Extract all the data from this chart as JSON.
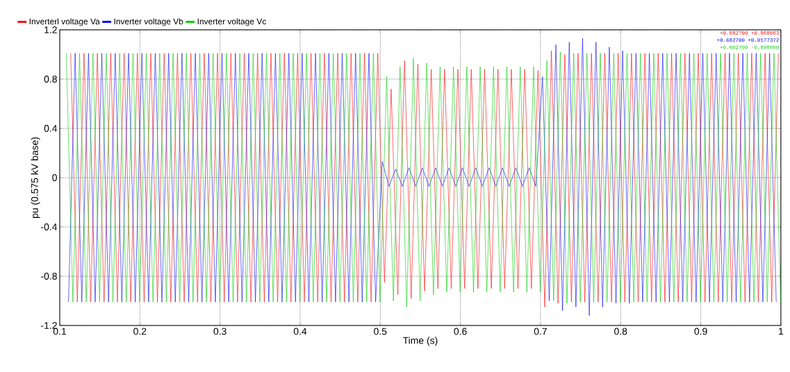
{
  "chart_data": {
    "type": "line",
    "xlabel": "Time (s)",
    "ylabel": "pu (0.575 kV base)",
    "xlim": [
      0.1,
      1.0
    ],
    "ylim": [
      -1.2,
      1.2
    ],
    "xticks": [
      0.1,
      0.2,
      0.3,
      0.4,
      0.5,
      0.6,
      0.7,
      0.8,
      0.9,
      1
    ],
    "yticks": [
      -1.2,
      -0.8,
      -0.4,
      0,
      0.4,
      0.8,
      1.2
    ],
    "grid": true,
    "legend": "top left",
    "annotations": [
      "+0.682700  +0.868063",
      "+0.682700  +0.0177372",
      "+0.682700  -0.898800"
    ],
    "series": [
      {
        "name": "Inverterl voltage Va",
        "color": "#ff0000",
        "x": [
          0.1136,
          0.1219,
          0.1303,
          0.1386,
          0.1469,
          0.1553,
          0.1636,
          0.1719,
          0.1803,
          0.1886,
          0.1969,
          0.2053,
          0.2136,
          0.2219,
          0.2303,
          0.2386,
          0.2469,
          0.2553,
          0.2636,
          0.2719,
          0.2803,
          0.2886,
          0.2969,
          0.3053,
          0.3136,
          0.3219,
          0.3303,
          0.3386,
          0.3469,
          0.3553,
          0.3636,
          0.3719,
          0.3803,
          0.3886,
          0.3969,
          0.4053,
          0.4136,
          0.4219,
          0.4303,
          0.4386,
          0.4469,
          0.4553,
          0.4636,
          0.4719,
          0.4803,
          0.4886,
          0.4969,
          0.5053,
          0.5136,
          0.5219,
          0.5303,
          0.5386,
          0.5469,
          0.5553,
          0.5636,
          0.5719,
          0.5803,
          0.5886,
          0.5969,
          0.6053,
          0.6136,
          0.6219,
          0.6303,
          0.6386,
          0.6469,
          0.6553,
          0.6636,
          0.6719,
          0.6803,
          0.6886,
          0.6969,
          0.7053,
          0.7136,
          0.7219,
          0.7303,
          0.7386,
          0.7469,
          0.7553,
          0.7636,
          0.7719,
          0.7803,
          0.7886,
          0.7969,
          0.8053,
          0.8136,
          0.8219,
          0.8303,
          0.8386,
          0.8469,
          0.8553,
          0.8636,
          0.8719,
          0.8803,
          0.8886,
          0.8969,
          0.9053,
          0.9136,
          0.9219,
          0.9303,
          0.9386,
          0.9469,
          0.9553,
          0.9636,
          0.9719,
          0.9803,
          0.9886,
          0.9969
        ],
        "values": [
          1.01,
          -1.01,
          1.01,
          -1.01,
          1.01,
          -1.01,
          1.01,
          -1.01,
          1.01,
          -1.01,
          1.01,
          -1.01,
          1.01,
          -1.01,
          1.01,
          -1.01,
          1.01,
          -1.01,
          1.01,
          -1.01,
          1.01,
          -1.01,
          1.01,
          -1.01,
          1.01,
          -1.01,
          1.01,
          -1.01,
          1.01,
          -1.01,
          1.01,
          -1.01,
          1.01,
          -1.01,
          1.01,
          -1.01,
          1.01,
          -1.01,
          1.01,
          -1.01,
          1.01,
          -1.01,
          1.01,
          -1.01,
          1.01,
          -1.01,
          1.01,
          -0.85,
          0.72,
          -0.95,
          0.95,
          -0.98,
          0.92,
          -0.92,
          0.88,
          -0.9,
          0.88,
          -0.9,
          0.88,
          -0.9,
          0.88,
          -0.9,
          0.88,
          -0.9,
          0.88,
          -0.9,
          0.88,
          -0.9,
          0.88,
          -0.9,
          0.87,
          -1.05,
          1.03,
          -1.02,
          1.0,
          -1.01,
          1.01,
          -1.01,
          1.01,
          -1.01,
          1.01,
          -1.01,
          1.01,
          -1.01,
          1.01,
          -1.01,
          1.01,
          -1.01,
          1.01,
          -1.01,
          1.01,
          -1.01,
          1.01,
          -1.01,
          1.01,
          -1.01,
          1.01,
          -1.01,
          1.01,
          -1.01,
          1.01,
          -1.01,
          1.01,
          -1.01,
          1.01,
          -1.01,
          1.01
        ]
      },
      {
        "name": "Inverter voltage Vb",
        "color": "#0000ff",
        "x": [
          0.1109,
          0.1192,
          0.1275,
          0.1359,
          0.1442,
          0.1525,
          0.1609,
          0.1692,
          0.1775,
          0.1859,
          0.1942,
          0.2025,
          0.2109,
          0.2192,
          0.2275,
          0.2359,
          0.2442,
          0.2525,
          0.2609,
          0.2692,
          0.2775,
          0.2859,
          0.2942,
          0.3025,
          0.3109,
          0.3192,
          0.3275,
          0.3359,
          0.3442,
          0.3525,
          0.3609,
          0.3692,
          0.3775,
          0.3859,
          0.3942,
          0.4025,
          0.4109,
          0.4192,
          0.4275,
          0.4359,
          0.4442,
          0.4525,
          0.4609,
          0.4692,
          0.4775,
          0.4859,
          0.4942,
          0.5025,
          0.5109,
          0.5192,
          0.5275,
          0.5359,
          0.5442,
          0.5525,
          0.5609,
          0.5692,
          0.5775,
          0.5859,
          0.5942,
          0.6025,
          0.6109,
          0.6192,
          0.6275,
          0.6359,
          0.6442,
          0.6525,
          0.6609,
          0.6692,
          0.6775,
          0.6859,
          0.6942,
          0.7025,
          0.7109,
          0.7192,
          0.7275,
          0.7359,
          0.7442,
          0.7525,
          0.7609,
          0.7692,
          0.7775,
          0.7859,
          0.7942,
          0.8025,
          0.8109,
          0.8192,
          0.8275,
          0.8359,
          0.8442,
          0.8525,
          0.8609,
          0.8692,
          0.8775,
          0.8859,
          0.8942,
          0.9025,
          0.9109,
          0.9192,
          0.9275,
          0.9359,
          0.9442,
          0.9525,
          0.9609,
          0.9692,
          0.9775,
          0.9859,
          0.9942
        ],
        "values": [
          -1.01,
          1.01,
          -1.01,
          1.01,
          -1.01,
          1.01,
          -1.01,
          1.01,
          -1.01,
          1.01,
          -1.01,
          1.01,
          -1.01,
          1.01,
          -1.01,
          1.01,
          -1.01,
          1.01,
          -1.01,
          1.01,
          -1.01,
          1.01,
          -1.01,
          1.01,
          -1.01,
          1.01,
          -1.01,
          1.01,
          -1.01,
          1.01,
          -1.01,
          1.01,
          -1.01,
          1.01,
          -1.01,
          1.01,
          -1.01,
          1.01,
          -1.01,
          1.01,
          -1.01,
          1.01,
          -1.01,
          1.01,
          -1.01,
          1.01,
          -1.01,
          0.13,
          -0.07,
          0.07,
          -0.07,
          0.08,
          -0.07,
          0.08,
          -0.07,
          0.08,
          -0.07,
          0.08,
          -0.07,
          0.08,
          -0.07,
          0.08,
          -0.07,
          0.08,
          -0.07,
          0.08,
          -0.07,
          0.08,
          -0.07,
          0.08,
          -0.07,
          0.82,
          -1.0,
          1.08,
          -1.08,
          1.1,
          -1.05,
          1.13,
          -1.12,
          1.1,
          -1.05,
          1.06,
          -1.02,
          1.03,
          -1.02,
          1.01,
          -1.01,
          1.01,
          -1.01,
          1.01,
          -1.01,
          1.01,
          -1.01,
          1.01,
          -1.01,
          1.01,
          -1.01,
          1.01,
          -1.01,
          1.01,
          -1.01,
          1.01,
          -1.01,
          1.01,
          -1.01,
          1.01,
          -1.01
        ]
      },
      {
        "name": "Inverter voltage Vc",
        "color": "#00cc00",
        "x": [
          0.1081,
          0.1164,
          0.1247,
          0.133,
          0.1414,
          0.1497,
          0.158,
          0.1664,
          0.1747,
          0.183,
          0.1914,
          0.1997,
          0.208,
          0.2164,
          0.2247,
          0.233,
          0.2414,
          0.2497,
          0.258,
          0.2664,
          0.2747,
          0.283,
          0.2914,
          0.2997,
          0.308,
          0.3164,
          0.3247,
          0.333,
          0.3414,
          0.3497,
          0.358,
          0.3664,
          0.3747,
          0.383,
          0.3914,
          0.3997,
          0.408,
          0.4164,
          0.4247,
          0.433,
          0.4414,
          0.4497,
          0.458,
          0.4664,
          0.4747,
          0.483,
          0.4914,
          0.4997,
          0.508,
          0.5164,
          0.5247,
          0.533,
          0.5414,
          0.5497,
          0.558,
          0.5664,
          0.5747,
          0.583,
          0.5914,
          0.5997,
          0.608,
          0.6164,
          0.6247,
          0.633,
          0.6414,
          0.6497,
          0.658,
          0.6664,
          0.6747,
          0.683,
          0.6914,
          0.6997,
          0.708,
          0.7164,
          0.7247,
          0.733,
          0.7414,
          0.7497,
          0.758,
          0.7664,
          0.7747,
          0.783,
          0.7914,
          0.7997,
          0.808,
          0.8164,
          0.8247,
          0.833,
          0.8414,
          0.8497,
          0.858,
          0.8664,
          0.8747,
          0.883,
          0.8914,
          0.8997,
          0.908,
          0.9164,
          0.9247,
          0.933,
          0.9414,
          0.9497,
          0.958,
          0.9664,
          0.9747,
          0.983,
          0.9914,
          0.9997
        ],
        "values": [
          1.01,
          -1.01,
          1.01,
          -1.01,
          1.01,
          -1.01,
          1.01,
          -1.01,
          1.01,
          -1.01,
          1.01,
          -1.01,
          1.01,
          -1.01,
          1.01,
          -1.01,
          1.01,
          -1.01,
          1.01,
          -1.01,
          1.01,
          -1.01,
          1.01,
          -1.01,
          1.01,
          -1.01,
          1.01,
          -1.01,
          1.01,
          -1.01,
          1.01,
          -1.01,
          1.01,
          -1.01,
          1.01,
          -1.01,
          1.01,
          -1.01,
          1.01,
          -1.01,
          1.01,
          -1.01,
          1.01,
          -1.01,
          1.01,
          -1.01,
          1.01,
          -1.01,
          0.82,
          -1.0,
          0.9,
          -1.05,
          0.97,
          -1.0,
          0.93,
          -0.95,
          0.9,
          -0.93,
          0.9,
          -0.93,
          0.9,
          -0.93,
          0.9,
          -0.93,
          0.9,
          -0.93,
          0.9,
          -0.93,
          0.9,
          -0.93,
          0.9,
          -0.93,
          0.95,
          -1.0,
          1.02,
          -1.02,
          1.01,
          -1.01,
          1.01,
          -1.01,
          1.01,
          -1.01,
          1.01,
          -1.01,
          1.01,
          -1.01,
          1.01,
          -1.01,
          1.01,
          -1.01,
          1.01,
          -1.01,
          1.01,
          -1.01,
          1.01,
          -1.01,
          1.01,
          -1.01,
          1.01,
          -1.01,
          1.01,
          -1.01,
          1.01,
          -1.01,
          1.01,
          -1.01,
          1.01,
          -1.01
        ]
      }
    ]
  }
}
